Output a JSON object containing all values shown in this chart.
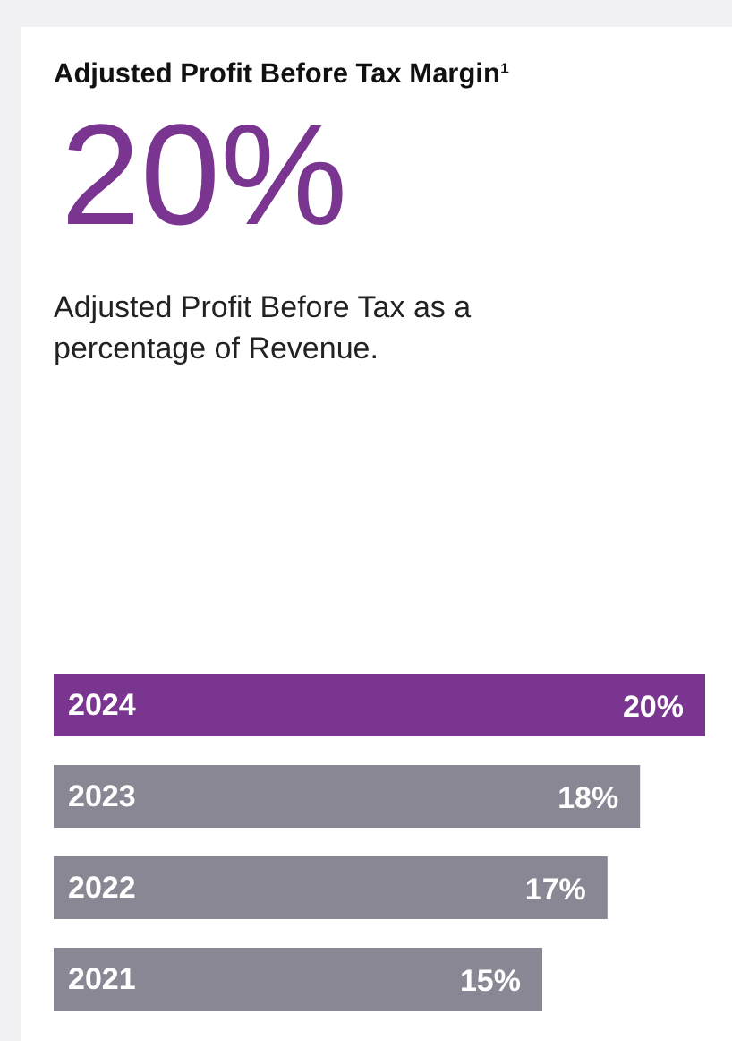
{
  "chart_data": {
    "type": "bar",
    "orientation": "horizontal",
    "title": "Adjusted Profit Before Tax Margin¹",
    "subtitle": "Adjusted Profit Before Tax as a percentage of Revenue.",
    "annotations": [
      "20%"
    ],
    "categories": [
      "2024",
      "2023",
      "2022",
      "2021"
    ],
    "values": [
      20,
      18,
      17,
      15
    ],
    "colors": [
      "#7a3590",
      "#8a8795",
      "#8a8795",
      "#8a8795"
    ],
    "value_labels": [
      "20%",
      "18%",
      "17%",
      "15%"
    ],
    "legend": false
  }
}
